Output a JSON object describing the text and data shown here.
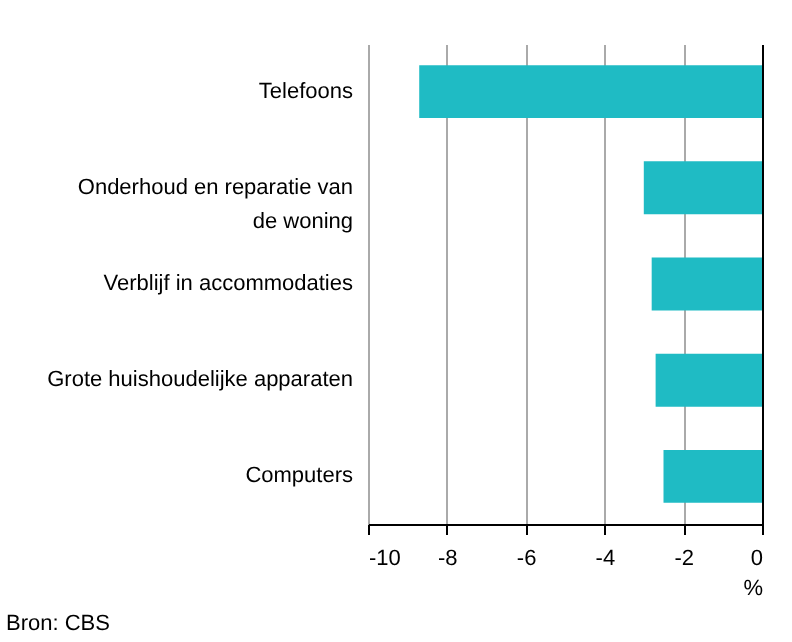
{
  "chart_data": {
    "type": "bar",
    "orientation": "horizontal",
    "categories": [
      "Telefoons",
      "Onderhoud en reparatie van\nde woning",
      "Verblijf in accommodaties",
      "Grote huishoudelijke apparaten",
      "Computers"
    ],
    "values": [
      -8.7,
      -3.0,
      -2.8,
      -2.7,
      -2.5
    ],
    "color": "#1fbbc4",
    "xlim": [
      -10,
      0
    ],
    "xticks": [
      -10,
      -8,
      -6,
      -4,
      -2,
      0
    ],
    "xlabel": "%",
    "grid": "x",
    "annotations": [
      "Bron: CBS"
    ]
  }
}
